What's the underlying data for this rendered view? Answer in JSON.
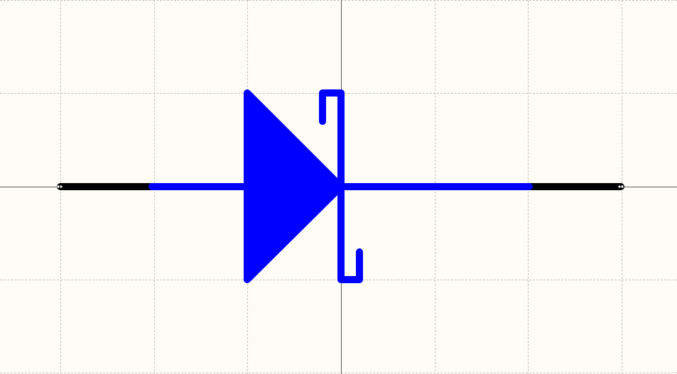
{
  "canvas": {
    "background_color": "#fdfcf7",
    "grid_color": "#c4c4c4",
    "origin_axis_color": "#5a5a5a"
  },
  "symbol": {
    "name": "zener-diode",
    "body_color": "#0000ff",
    "pin_color": "#000000",
    "pin_end_color": "#ffffff",
    "pins": [
      {
        "name": "anode-pin"
      },
      {
        "name": "cathode-pin"
      }
    ]
  }
}
